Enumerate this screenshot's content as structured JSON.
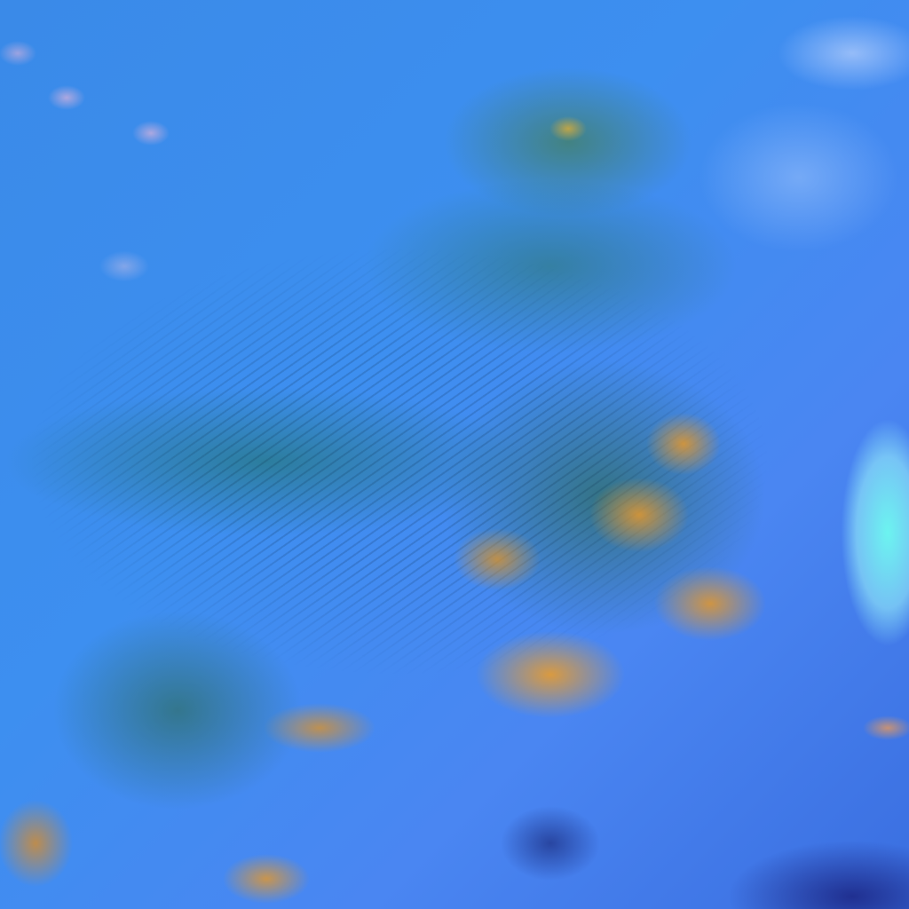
{
  "image": {
    "kind": "false-color satellite cloud imagery",
    "colors": {
      "ocean_background": "#3d8ff0",
      "mid_cloud": "#2e7a5a",
      "warm_cloud": "#dc9632",
      "bright_cloud": "#6efaf0",
      "dark_region": "#141470"
    }
  }
}
